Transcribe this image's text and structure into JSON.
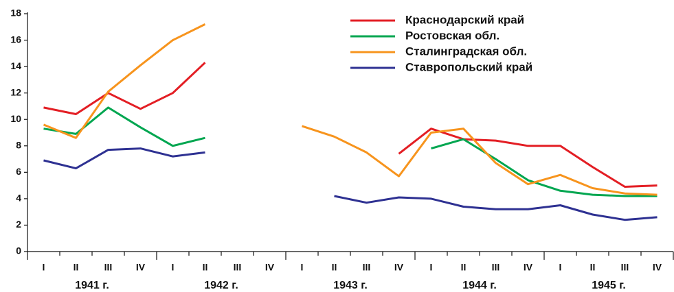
{
  "chart_data": {
    "type": "line",
    "categories": [
      "I",
      "II",
      "III",
      "IV",
      "I",
      "II",
      "III",
      "IV",
      "I",
      "II",
      "III",
      "IV",
      "I",
      "II",
      "III",
      "IV",
      "I",
      "II",
      "III",
      "IV"
    ],
    "year_labels": [
      "1941 г.",
      "1942 г.",
      "1943 г.",
      "1944 г.",
      "1945 г."
    ],
    "series": [
      {
        "name": "Краснодарский край",
        "color": "#e31e24",
        "values": [
          10.9,
          10.4,
          12.0,
          10.8,
          12.0,
          14.3,
          null,
          null,
          null,
          null,
          null,
          7.4,
          9.3,
          8.5,
          8.4,
          8.0,
          8.0,
          6.4,
          4.9,
          5.0
        ]
      },
      {
        "name": "Ростовская обл.",
        "color": "#00a650",
        "values": [
          9.3,
          8.9,
          10.9,
          9.4,
          8.0,
          8.6,
          null,
          null,
          null,
          null,
          null,
          null,
          7.8,
          8.5,
          7.0,
          5.4,
          4.6,
          4.3,
          4.2,
          4.2
        ]
      },
      {
        "name": "Сталинградская обл.",
        "color": "#f7941d",
        "values": [
          9.6,
          8.6,
          12.1,
          14.1,
          16.0,
          17.2,
          null,
          null,
          9.5,
          8.7,
          7.5,
          5.7,
          9.0,
          9.3,
          6.7,
          5.1,
          5.8,
          4.8,
          4.4,
          4.3
        ]
      },
      {
        "name": "Ставропольский край",
        "color": "#2e3192",
        "values": [
          6.9,
          6.3,
          7.7,
          7.8,
          7.2,
          7.5,
          null,
          null,
          null,
          4.2,
          3.7,
          4.1,
          4.0,
          3.4,
          3.2,
          3.2,
          3.5,
          2.8,
          2.4,
          2.6
        ]
      }
    ],
    "ylim": [
      0,
      18
    ],
    "yticks": [
      0,
      2,
      4,
      6,
      8,
      10,
      12,
      14,
      16,
      18
    ],
    "grid": false
  }
}
